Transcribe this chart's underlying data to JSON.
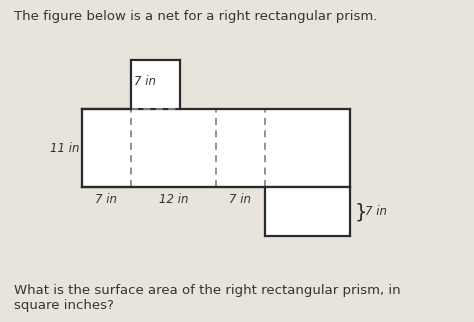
{
  "title": "The figure below is a net for a right rectangular prism.",
  "question": "What is the surface area of the right rectangular prism, in\nsquare inches?",
  "bg_color": "#e8e4dc",
  "line_color": "#2a2a2a",
  "dash_color": "#888888",
  "text_color": "#333333",
  "dim_7_top": "7 in",
  "dim_7_left": "7 in",
  "dim_12": "12 in",
  "dim_7_right": "7 in",
  "dim_11": "11 in",
  "dim_7_brace": "7 in",
  "fig_width": 4.74,
  "fig_height": 3.22
}
